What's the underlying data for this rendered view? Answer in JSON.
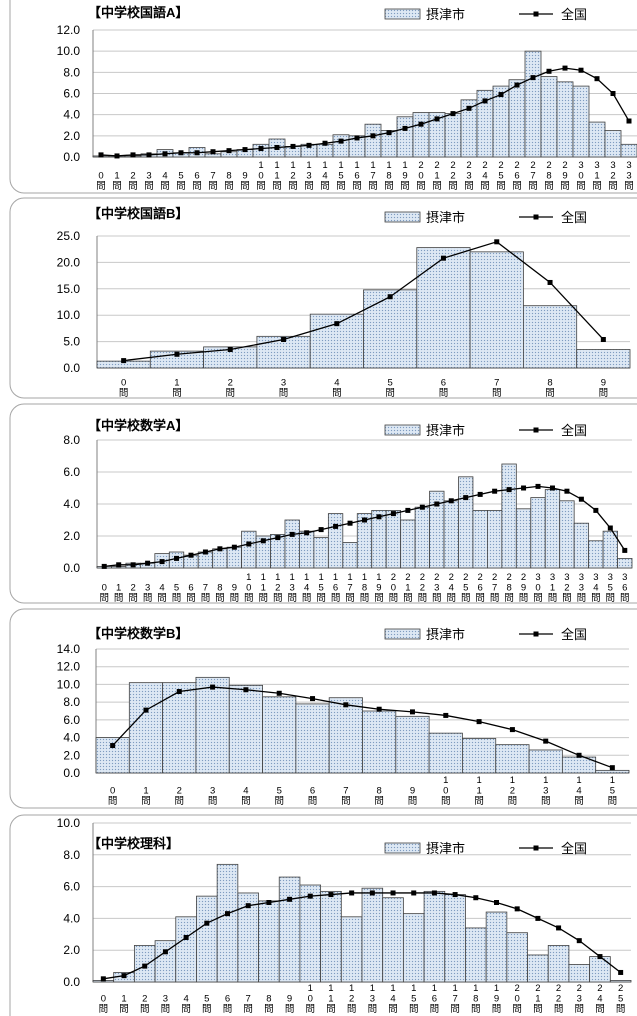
{
  "chart_data": [
    {
      "type": "bar",
      "title": "【中学校国語A】",
      "categories": [
        "0問",
        "1問",
        "2問",
        "3問",
        "4問",
        "5問",
        "6問",
        "7問",
        "8問",
        "9問",
        "10問",
        "11問",
        "12問",
        "13問",
        "14問",
        "15問",
        "16問",
        "17問",
        "18問",
        "19問",
        "20問",
        "21問",
        "22問",
        "23問",
        "24問",
        "25問",
        "26問",
        "27問",
        "28問",
        "29問",
        "30問",
        "31問",
        "32問",
        "33問"
      ],
      "series": [
        {
          "name": "摂津市",
          "type": "bar",
          "color": "#dde8f4",
          "values": [
            0.1,
            0.1,
            0.1,
            0.3,
            0.7,
            0.4,
            0.9,
            0.3,
            0.5,
            0.7,
            1.2,
            1.7,
            1.0,
            1.2,
            1.2,
            2.1,
            2.0,
            3.1,
            2.5,
            3.8,
            4.2,
            4.2,
            4.1,
            5.4,
            6.3,
            6.7,
            7.3,
            10.0,
            7.6,
            7.1,
            6.7,
            3.3,
            2.5,
            1.2
          ]
        },
        {
          "name": "全国",
          "type": "line",
          "color": "#000000",
          "values": [
            0.2,
            0.1,
            0.2,
            0.2,
            0.3,
            0.4,
            0.4,
            0.5,
            0.6,
            0.7,
            0.8,
            0.9,
            1.0,
            1.1,
            1.3,
            1.5,
            1.8,
            2.0,
            2.3,
            2.7,
            3.1,
            3.6,
            4.1,
            4.6,
            5.3,
            5.9,
            6.8,
            7.5,
            8.1,
            8.4,
            8.2,
            7.4,
            6.0,
            3.4
          ]
        }
      ],
      "ylim": [
        0,
        12
      ],
      "yticks": [
        "0.0",
        "2.0",
        "4.0",
        "6.0",
        "8.0",
        "10.0",
        "12.0"
      ],
      "grid": true,
      "legend": "top-right"
    },
    {
      "type": "bar",
      "title": "【中学校国語B】",
      "categories": [
        "0問",
        "1問",
        "2問",
        "3問",
        "4問",
        "5問",
        "6問",
        "7問",
        "8問",
        "9問"
      ],
      "series": [
        {
          "name": "摂津市",
          "type": "bar",
          "color": "#dde8f4",
          "values": [
            1.3,
            3.2,
            4.0,
            6.0,
            10.2,
            14.8,
            22.8,
            22.0,
            11.8,
            3.5
          ]
        },
        {
          "name": "全国",
          "type": "line",
          "color": "#000000",
          "values": [
            1.4,
            2.6,
            3.5,
            5.4,
            8.4,
            13.5,
            20.8,
            23.9,
            16.2,
            5.4
          ]
        }
      ],
      "ylim": [
        0,
        25
      ],
      "yticks": [
        "0.0",
        "5.0",
        "10.0",
        "15.0",
        "20.0",
        "25.0"
      ],
      "grid": true,
      "legend": "top-right"
    },
    {
      "type": "bar",
      "title": "【中学校数学A】",
      "categories": [
        "0問",
        "1問",
        "2問",
        "3問",
        "4問",
        "5問",
        "6問",
        "7問",
        "8問",
        "9問",
        "10問",
        "11問",
        "12問",
        "13問",
        "14問",
        "15問",
        "16問",
        "17問",
        "18問",
        "19問",
        "20問",
        "21問",
        "22問",
        "23問",
        "24問",
        "25問",
        "26問",
        "27問",
        "28問",
        "29問",
        "30問",
        "31問",
        "32問",
        "33問",
        "34問",
        "35問",
        "36問"
      ],
      "series": [
        {
          "name": "摂津市",
          "type": "bar",
          "color": "#dde8f4",
          "values": [
            0.1,
            0.1,
            0.3,
            0.3,
            0.9,
            1.0,
            0.8,
            1.0,
            1.2,
            1.3,
            2.3,
            2.0,
            2.1,
            3.0,
            2.3,
            1.9,
            3.4,
            1.6,
            3.4,
            3.6,
            3.6,
            3.0,
            3.8,
            4.8,
            4.2,
            5.7,
            3.6,
            3.6,
            6.5,
            3.7,
            4.4,
            4.9,
            4.2,
            2.8,
            1.7,
            2.3,
            0.6
          ]
        },
        {
          "name": "全国",
          "type": "line",
          "color": "#000000",
          "values": [
            0.1,
            0.2,
            0.2,
            0.3,
            0.4,
            0.6,
            0.8,
            1.0,
            1.2,
            1.3,
            1.5,
            1.7,
            1.9,
            2.1,
            2.2,
            2.4,
            2.6,
            2.8,
            3.0,
            3.2,
            3.4,
            3.6,
            3.8,
            4.0,
            4.2,
            4.4,
            4.6,
            4.8,
            4.9,
            5.0,
            5.1,
            5.0,
            4.8,
            4.3,
            3.6,
            2.5,
            1.1
          ]
        }
      ],
      "ylim": [
        0,
        8
      ],
      "yticks": [
        "0.0",
        "2.0",
        "4.0",
        "6.0",
        "8.0"
      ],
      "grid": true,
      "legend": "top-right"
    },
    {
      "type": "bar",
      "title": "【中学校数学B】",
      "categories": [
        "0問",
        "1問",
        "2問",
        "3問",
        "4問",
        "5問",
        "6問",
        "7問",
        "8問",
        "9問",
        "10問",
        "11問",
        "12問",
        "13問",
        "14問",
        "15問"
      ],
      "series": [
        {
          "name": "摂津市",
          "type": "bar",
          "color": "#dde8f4",
          "values": [
            4.0,
            10.2,
            10.2,
            10.8,
            9.9,
            8.6,
            7.8,
            8.5,
            7.0,
            6.4,
            4.5,
            3.9,
            3.2,
            2.6,
            1.8,
            0.3
          ]
        },
        {
          "name": "全国",
          "type": "line",
          "color": "#000000",
          "values": [
            3.1,
            7.1,
            9.2,
            9.7,
            9.4,
            9.0,
            8.4,
            7.7,
            7.2,
            6.9,
            6.5,
            5.8,
            4.9,
            3.6,
            2.0,
            0.6
          ]
        }
      ],
      "ylim": [
        0,
        14
      ],
      "yticks": [
        "0.0",
        "2.0",
        "4.0",
        "6.0",
        "8.0",
        "10.0",
        "12.0",
        "14.0"
      ],
      "grid": true,
      "legend": "top-right"
    },
    {
      "type": "bar",
      "title": "【中学校理科】",
      "categories": [
        "0問",
        "1問",
        "2問",
        "3問",
        "4問",
        "5問",
        "6問",
        "7問",
        "8問",
        "9問",
        "10問",
        "11問",
        "12問",
        "13問",
        "14問",
        "15問",
        "16問",
        "17問",
        "18問",
        "19問",
        "20問",
        "21問",
        "22問",
        "23問",
        "24問",
        "25問"
      ],
      "series": [
        {
          "name": "摂津市",
          "type": "bar",
          "color": "#dde8f4",
          "values": [
            0.1,
            0.6,
            2.3,
            2.6,
            4.1,
            5.4,
            7.4,
            5.6,
            5.1,
            6.6,
            6.1,
            5.7,
            4.1,
            5.9,
            5.3,
            4.3,
            5.7,
            5.5,
            3.4,
            4.4,
            3.1,
            1.7,
            2.3,
            1.1,
            1.6,
            0.1
          ]
        },
        {
          "name": "全国",
          "type": "line",
          "color": "#000000",
          "values": [
            0.2,
            0.4,
            1.0,
            1.9,
            2.8,
            3.7,
            4.3,
            4.8,
            5.0,
            5.2,
            5.4,
            5.5,
            5.6,
            5.6,
            5.6,
            5.6,
            5.6,
            5.5,
            5.3,
            5.0,
            4.6,
            4.0,
            3.4,
            2.6,
            1.6,
            0.6
          ]
        }
      ],
      "ylim": [
        0,
        10
      ],
      "yticks": [
        "0.0",
        "2.0",
        "4.0",
        "6.0",
        "8.0",
        "10.0"
      ],
      "grid": true,
      "legend": "top-right"
    }
  ]
}
